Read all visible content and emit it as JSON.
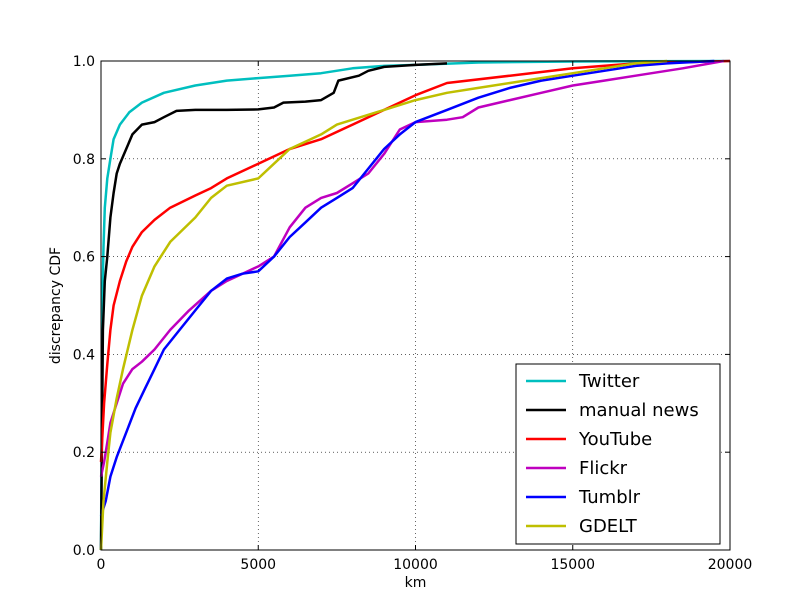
{
  "chart_data": {
    "type": "line",
    "title": "",
    "xlabel": "km",
    "ylabel": "discrepancy CDF",
    "xlim": [
      0,
      20000
    ],
    "ylim": [
      0.0,
      1.0
    ],
    "x_ticks": [
      "0",
      "5000",
      "10000",
      "15000",
      "20000"
    ],
    "y_ticks": [
      "0.0",
      "0.2",
      "0.4",
      "0.6",
      "0.8",
      "1.0"
    ],
    "grid": "dotted",
    "legend_position": "lower-right",
    "series": [
      {
        "name": "Twitter",
        "color": "#00bfbf",
        "points": [
          [
            0,
            0
          ],
          [
            40,
            0.5
          ],
          [
            80,
            0.62
          ],
          [
            120,
            0.7
          ],
          [
            200,
            0.76
          ],
          [
            300,
            0.8
          ],
          [
            400,
            0.84
          ],
          [
            600,
            0.87
          ],
          [
            900,
            0.895
          ],
          [
            1300,
            0.915
          ],
          [
            2000,
            0.935
          ],
          [
            3000,
            0.95
          ],
          [
            4000,
            0.96
          ],
          [
            5000,
            0.965
          ],
          [
            6000,
            0.97
          ],
          [
            7000,
            0.975
          ],
          [
            8000,
            0.985
          ],
          [
            9000,
            0.99
          ],
          [
            10000,
            0.992
          ],
          [
            12000,
            0.997
          ],
          [
            15000,
            0.999
          ],
          [
            20000,
            1.0
          ]
        ]
      },
      {
        "name": "manual news",
        "color": "#000000",
        "points": [
          [
            0,
            0
          ],
          [
            60,
            0.45
          ],
          [
            120,
            0.55
          ],
          [
            200,
            0.6
          ],
          [
            300,
            0.68
          ],
          [
            400,
            0.73
          ],
          [
            500,
            0.77
          ],
          [
            600,
            0.79
          ],
          [
            800,
            0.82
          ],
          [
            1000,
            0.85
          ],
          [
            1300,
            0.87
          ],
          [
            1700,
            0.875
          ],
          [
            2000,
            0.885
          ],
          [
            2400,
            0.898
          ],
          [
            3000,
            0.9
          ],
          [
            4000,
            0.9
          ],
          [
            5000,
            0.901
          ],
          [
            5500,
            0.905
          ],
          [
            5800,
            0.915
          ],
          [
            6500,
            0.917
          ],
          [
            7000,
            0.92
          ],
          [
            7400,
            0.935
          ],
          [
            7550,
            0.96
          ],
          [
            8200,
            0.97
          ],
          [
            8500,
            0.98
          ],
          [
            9000,
            0.988
          ],
          [
            10000,
            0.992
          ],
          [
            11000,
            0.995
          ]
        ]
      },
      {
        "name": "YouTube",
        "color": "#ff0000",
        "points": [
          [
            0,
            0.18
          ],
          [
            100,
            0.3
          ],
          [
            200,
            0.38
          ],
          [
            300,
            0.45
          ],
          [
            400,
            0.5
          ],
          [
            600,
            0.55
          ],
          [
            800,
            0.59
          ],
          [
            1000,
            0.62
          ],
          [
            1300,
            0.65
          ],
          [
            1700,
            0.675
          ],
          [
            2200,
            0.7
          ],
          [
            3000,
            0.725
          ],
          [
            3500,
            0.74
          ],
          [
            4000,
            0.76
          ],
          [
            5000,
            0.79
          ],
          [
            6000,
            0.82
          ],
          [
            7000,
            0.84
          ],
          [
            8000,
            0.87
          ],
          [
            9000,
            0.9
          ],
          [
            10000,
            0.93
          ],
          [
            11000,
            0.955
          ],
          [
            13000,
            0.97
          ],
          [
            15000,
            0.985
          ],
          [
            17000,
            0.995
          ],
          [
            20000,
            1.0
          ]
        ]
      },
      {
        "name": "Flickr",
        "color": "#bf00bf",
        "points": [
          [
            0,
            0.15
          ],
          [
            100,
            0.18
          ],
          [
            200,
            0.22
          ],
          [
            300,
            0.26
          ],
          [
            500,
            0.3
          ],
          [
            700,
            0.34
          ],
          [
            1000,
            0.37
          ],
          [
            1300,
            0.385
          ],
          [
            1700,
            0.41
          ],
          [
            2200,
            0.45
          ],
          [
            2800,
            0.49
          ],
          [
            3500,
            0.53
          ],
          [
            4000,
            0.55
          ],
          [
            4500,
            0.565
          ],
          [
            5000,
            0.58
          ],
          [
            5500,
            0.6
          ],
          [
            6000,
            0.66
          ],
          [
            6500,
            0.7
          ],
          [
            7000,
            0.72
          ],
          [
            7500,
            0.73
          ],
          [
            8000,
            0.75
          ],
          [
            8500,
            0.77
          ],
          [
            9000,
            0.81
          ],
          [
            9500,
            0.86
          ],
          [
            10000,
            0.875
          ],
          [
            11000,
            0.88
          ],
          [
            11500,
            0.885
          ],
          [
            12000,
            0.905
          ],
          [
            13000,
            0.92
          ],
          [
            14000,
            0.935
          ],
          [
            15000,
            0.95
          ],
          [
            16000,
            0.96
          ],
          [
            17000,
            0.97
          ],
          [
            18500,
            0.985
          ],
          [
            19800,
            1.0
          ]
        ]
      },
      {
        "name": "Tumblr",
        "color": "#0000ff",
        "points": [
          [
            0,
            0.07
          ],
          [
            150,
            0.1
          ],
          [
            300,
            0.15
          ],
          [
            500,
            0.19
          ],
          [
            800,
            0.24
          ],
          [
            1100,
            0.29
          ],
          [
            1400,
            0.33
          ],
          [
            1700,
            0.37
          ],
          [
            2000,
            0.41
          ],
          [
            2500,
            0.45
          ],
          [
            3000,
            0.49
          ],
          [
            3500,
            0.53
          ],
          [
            4000,
            0.555
          ],
          [
            4500,
            0.565
          ],
          [
            5000,
            0.57
          ],
          [
            5500,
            0.6
          ],
          [
            6000,
            0.64
          ],
          [
            6500,
            0.67
          ],
          [
            7000,
            0.7
          ],
          [
            7500,
            0.72
          ],
          [
            8000,
            0.74
          ],
          [
            8500,
            0.78
          ],
          [
            9000,
            0.82
          ],
          [
            9500,
            0.85
          ],
          [
            10000,
            0.875
          ],
          [
            11000,
            0.9
          ],
          [
            12000,
            0.925
          ],
          [
            13000,
            0.945
          ],
          [
            14000,
            0.96
          ],
          [
            15000,
            0.97
          ],
          [
            16000,
            0.98
          ],
          [
            17000,
            0.99
          ],
          [
            18000,
            0.995
          ],
          [
            19500,
            1.0
          ]
        ]
      },
      {
        "name": "GDELT",
        "color": "#bfbf00",
        "points": [
          [
            0,
            0
          ],
          [
            80,
            0.1
          ],
          [
            200,
            0.18
          ],
          [
            300,
            0.24
          ],
          [
            500,
            0.31
          ],
          [
            700,
            0.37
          ],
          [
            1000,
            0.45
          ],
          [
            1300,
            0.52
          ],
          [
            1700,
            0.58
          ],
          [
            2200,
            0.63
          ],
          [
            3000,
            0.68
          ],
          [
            3500,
            0.72
          ],
          [
            4000,
            0.745
          ],
          [
            5000,
            0.76
          ],
          [
            5500,
            0.79
          ],
          [
            6000,
            0.82
          ],
          [
            7000,
            0.85
          ],
          [
            7500,
            0.87
          ],
          [
            8000,
            0.88
          ],
          [
            9000,
            0.9
          ],
          [
            10000,
            0.92
          ],
          [
            11000,
            0.935
          ],
          [
            12000,
            0.945
          ],
          [
            13000,
            0.955
          ],
          [
            14000,
            0.965
          ],
          [
            15000,
            0.975
          ],
          [
            16000,
            0.985
          ],
          [
            17000,
            0.995
          ],
          [
            18000,
            1.0
          ]
        ]
      }
    ]
  }
}
